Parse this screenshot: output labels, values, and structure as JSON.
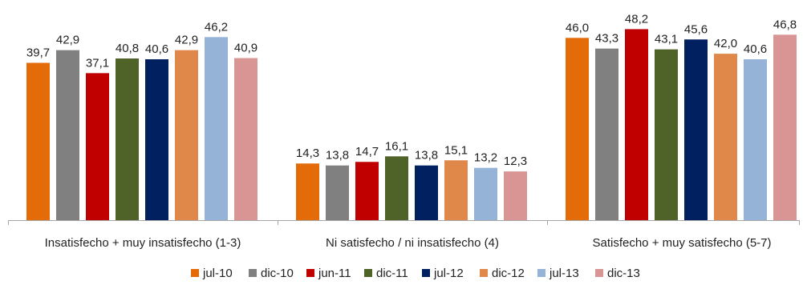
{
  "chart_data": {
    "type": "bar",
    "title": "",
    "xlabel": "",
    "ylabel": "",
    "ylim": [
      0,
      52
    ],
    "grid": false,
    "legend_position": "bottom",
    "categories": [
      "Insatisfecho + muy insatisfecho (1-3)",
      "Ni satisfecho / ni insatisfecho (4)",
      "Satisfecho + muy satisfecho (5-7)"
    ],
    "series": [
      {
        "name": "jul-10",
        "color": "#E36C09",
        "values": [
          39.7,
          14.3,
          46.0
        ],
        "labels": [
          "39,7",
          "14,3",
          "46,0"
        ]
      },
      {
        "name": "dic-10",
        "color": "#808080",
        "values": [
          42.9,
          13.8,
          43.3
        ],
        "labels": [
          "42,9",
          "13,8",
          "43,3"
        ]
      },
      {
        "name": "jun-11",
        "color": "#C00000",
        "values": [
          37.1,
          14.7,
          48.2
        ],
        "labels": [
          "37,1",
          "14,7",
          "48,2"
        ]
      },
      {
        "name": "dic-11",
        "color": "#4F6228",
        "values": [
          40.8,
          16.1,
          43.1
        ],
        "labels": [
          "40,8",
          "16,1",
          "43,1"
        ]
      },
      {
        "name": "jul-12",
        "color": "#002060",
        "values": [
          40.6,
          13.8,
          45.6
        ],
        "labels": [
          "40,6",
          "13,8",
          "45,6"
        ]
      },
      {
        "name": "dic-12",
        "color": "#E0884A",
        "values": [
          42.9,
          15.1,
          42.0
        ],
        "labels": [
          "42,9",
          "15,1",
          "42,0"
        ]
      },
      {
        "name": "jul-13",
        "color": "#95B3D7",
        "values": [
          46.2,
          13.2,
          40.6
        ],
        "labels": [
          "46,2",
          "13,2",
          "40,6"
        ]
      },
      {
        "name": "dic-13",
        "color": "#D99594",
        "values": [
          40.9,
          12.3,
          46.8
        ],
        "labels": [
          "40,9",
          "12,3",
          "46,8"
        ]
      }
    ]
  }
}
